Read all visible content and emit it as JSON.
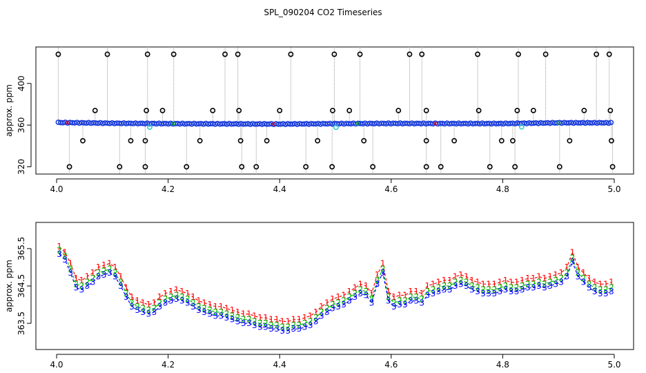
{
  "chart_data": [
    {
      "type": "scatter",
      "title": "SPL_090204  CO2 Timeseries",
      "xlabel": "",
      "ylabel": "approx. ppm",
      "xlim": [
        4.0,
        5.0
      ],
      "ylim": [
        313,
        435
      ],
      "x_ticks": [
        "4.0",
        "4.2",
        "4.4",
        "4.6",
        "4.8",
        "5.0"
      ],
      "y_ticks": [
        "320",
        "360",
        "400"
      ],
      "baseline": {
        "x": [
          4.0,
          4.1,
          4.2,
          4.3,
          4.4,
          4.5,
          4.6,
          4.7,
          4.8,
          4.9,
          4.99
        ],
        "y": [
          362.5,
          361.8,
          361.4,
          361.2,
          361.0,
          361.4,
          361.6,
          361.5,
          361.5,
          362.2,
          362.2
        ]
      },
      "spikes_high": [
        4.003,
        4.091,
        4.163,
        4.21,
        4.302,
        4.325,
        4.42,
        4.498,
        4.544,
        4.633,
        4.655,
        4.755,
        4.828,
        4.877,
        4.968,
        4.991
      ],
      "spikes_mid": [
        4.069,
        4.161,
        4.19,
        4.28,
        4.327,
        4.4,
        4.495,
        4.525,
        4.613,
        4.663,
        4.757,
        4.826,
        4.855,
        4.946,
        4.993
      ],
      "spikes_low": [
        4.047,
        4.133,
        4.159,
        4.257,
        4.33,
        4.377,
        4.468,
        4.551,
        4.663,
        4.713,
        4.798,
        4.818,
        4.92,
        4.995
      ],
      "spikes_bottom": [
        4.023,
        4.113,
        4.159,
        4.233,
        4.332,
        4.358,
        4.447,
        4.494,
        4.567,
        4.663,
        4.689,
        4.777,
        4.822,
        4.902,
        4.997
      ],
      "cyan_points": [
        4.167,
        4.501,
        4.834
      ]
    },
    {
      "type": "line",
      "title": "",
      "xlabel": "",
      "ylabel": "approx. ppm",
      "xlim": [
        4.0,
        5.0
      ],
      "ylim": [
        362.8,
        366.2
      ],
      "x_ticks": [
        "4.0",
        "4.2",
        "4.4",
        "4.6",
        "4.8",
        "5.0"
      ],
      "y_ticks": [
        "363.5",
        "364.5",
        "365.5"
      ],
      "series": [
        {
          "name": "1",
          "label": "1",
          "color": "#ff0000",
          "x": [
            4.005,
            4.015,
            4.025,
            4.035,
            4.045,
            4.055,
            4.065,
            4.075,
            4.085,
            4.095,
            4.105,
            4.115,
            4.125,
            4.135,
            4.145,
            4.155,
            4.165,
            4.175,
            4.185,
            4.195,
            4.205,
            4.215,
            4.225,
            4.235,
            4.245,
            4.255,
            4.265,
            4.275,
            4.285,
            4.295,
            4.305,
            4.315,
            4.325,
            4.335,
            4.345,
            4.355,
            4.365,
            4.375,
            4.385,
            4.395,
            4.405,
            4.415,
            4.425,
            4.435,
            4.445,
            4.455,
            4.465,
            4.475,
            4.485,
            4.495,
            4.505,
            4.515,
            4.525,
            4.535,
            4.545,
            4.555,
            4.565,
            4.575,
            4.585,
            4.595,
            4.605,
            4.615,
            4.625,
            4.635,
            4.645,
            4.655,
            4.665,
            4.675,
            4.685,
            4.695,
            4.705,
            4.715,
            4.725,
            4.735,
            4.745,
            4.755,
            4.765,
            4.775,
            4.785,
            4.795,
            4.805,
            4.815,
            4.825,
            4.835,
            4.845,
            4.855,
            4.865,
            4.875,
            4.885,
            4.895,
            4.905,
            4.915,
            4.925,
            4.935,
            4.945,
            4.955,
            4.965,
            4.975,
            4.985,
            4.995
          ],
          "y": [
            365.55,
            365.4,
            365.1,
            364.7,
            364.65,
            364.75,
            364.85,
            365.0,
            365.05,
            365.1,
            365.0,
            364.75,
            364.45,
            364.2,
            364.1,
            364.05,
            364.0,
            364.05,
            364.2,
            364.3,
            364.35,
            364.4,
            364.35,
            364.3,
            364.2,
            364.1,
            364.05,
            364.0,
            363.95,
            363.95,
            363.9,
            363.85,
            363.8,
            363.75,
            363.75,
            363.7,
            363.65,
            363.65,
            363.6,
            363.6,
            363.55,
            363.55,
            363.6,
            363.6,
            363.65,
            363.7,
            363.8,
            363.95,
            364.05,
            364.15,
            364.2,
            364.25,
            364.35,
            364.45,
            364.55,
            364.5,
            364.3,
            364.8,
            365.1,
            364.35,
            364.2,
            364.25,
            364.25,
            364.35,
            364.35,
            364.3,
            364.5,
            364.55,
            364.6,
            364.65,
            364.65,
            364.75,
            364.8,
            364.75,
            364.65,
            364.6,
            364.55,
            364.55,
            364.55,
            364.6,
            364.65,
            364.6,
            364.6,
            364.65,
            364.7,
            364.7,
            364.75,
            364.7,
            364.75,
            364.8,
            364.85,
            365.0,
            365.4,
            365.0,
            364.85,
            364.7,
            364.6,
            364.55,
            364.55,
            364.6
          ]
        },
        {
          "name": "2",
          "label": "2",
          "color": "#00bb00",
          "x": [
            4.005,
            4.015,
            4.025,
            4.035,
            4.045,
            4.055,
            4.065,
            4.075,
            4.085,
            4.095,
            4.105,
            4.115,
            4.125,
            4.135,
            4.145,
            4.155,
            4.165,
            4.175,
            4.185,
            4.195,
            4.205,
            4.215,
            4.225,
            4.235,
            4.245,
            4.255,
            4.265,
            4.275,
            4.285,
            4.295,
            4.305,
            4.315,
            4.325,
            4.335,
            4.345,
            4.355,
            4.365,
            4.375,
            4.385,
            4.395,
            4.405,
            4.415,
            4.425,
            4.435,
            4.445,
            4.455,
            4.465,
            4.475,
            4.485,
            4.495,
            4.505,
            4.515,
            4.525,
            4.535,
            4.545,
            4.555,
            4.565,
            4.575,
            4.585,
            4.595,
            4.605,
            4.615,
            4.625,
            4.635,
            4.645,
            4.655,
            4.665,
            4.675,
            4.685,
            4.695,
            4.705,
            4.715,
            4.725,
            4.735,
            4.745,
            4.755,
            4.765,
            4.775,
            4.785,
            4.795,
            4.805,
            4.815,
            4.825,
            4.835,
            4.845,
            4.855,
            4.865,
            4.875,
            4.885,
            4.895,
            4.905,
            4.915,
            4.925,
            4.935,
            4.945,
            4.955,
            4.965,
            4.975,
            4.985,
            4.995
          ],
          "y": [
            365.45,
            365.3,
            364.95,
            364.55,
            364.5,
            364.6,
            364.7,
            364.85,
            364.9,
            364.95,
            364.85,
            364.6,
            364.3,
            364.05,
            363.95,
            363.9,
            363.85,
            363.9,
            364.05,
            364.15,
            364.2,
            364.25,
            364.2,
            364.15,
            364.05,
            363.95,
            363.9,
            363.85,
            363.8,
            363.8,
            363.75,
            363.7,
            363.65,
            363.6,
            363.6,
            363.55,
            363.5,
            363.5,
            363.45,
            363.45,
            363.4,
            363.4,
            363.45,
            363.45,
            363.5,
            363.55,
            363.65,
            363.8,
            363.9,
            364.0,
            364.05,
            364.1,
            364.2,
            364.3,
            364.4,
            364.35,
            364.15,
            364.65,
            364.95,
            364.2,
            364.05,
            364.1,
            364.1,
            364.2,
            364.2,
            364.15,
            364.35,
            364.4,
            364.45,
            364.5,
            364.5,
            364.6,
            364.65,
            364.6,
            364.5,
            364.45,
            364.4,
            364.4,
            364.4,
            364.45,
            364.5,
            364.45,
            364.45,
            364.5,
            364.55,
            364.55,
            364.6,
            364.55,
            364.6,
            364.65,
            364.7,
            364.85,
            365.25,
            364.85,
            364.7,
            364.55,
            364.45,
            364.4,
            364.4,
            364.45
          ]
        },
        {
          "name": "3",
          "label": "3",
          "color": "#0000ff",
          "x": [
            4.005,
            4.015,
            4.025,
            4.035,
            4.045,
            4.055,
            4.065,
            4.075,
            4.085,
            4.095,
            4.105,
            4.115,
            4.125,
            4.135,
            4.145,
            4.155,
            4.165,
            4.175,
            4.185,
            4.195,
            4.205,
            4.215,
            4.225,
            4.235,
            4.245,
            4.255,
            4.265,
            4.275,
            4.285,
            4.295,
            4.305,
            4.315,
            4.325,
            4.335,
            4.345,
            4.355,
            4.365,
            4.375,
            4.385,
            4.395,
            4.405,
            4.415,
            4.425,
            4.435,
            4.445,
            4.455,
            4.465,
            4.475,
            4.485,
            4.495,
            4.505,
            4.515,
            4.525,
            4.535,
            4.545,
            4.555,
            4.565,
            4.575,
            4.585,
            4.595,
            4.605,
            4.615,
            4.625,
            4.635,
            4.645,
            4.655,
            4.665,
            4.675,
            4.685,
            4.695,
            4.705,
            4.715,
            4.725,
            4.735,
            4.745,
            4.755,
            4.765,
            4.775,
            4.785,
            4.795,
            4.805,
            4.815,
            4.825,
            4.835,
            4.845,
            4.855,
            4.865,
            4.875,
            4.885,
            4.895,
            4.905,
            4.915,
            4.925,
            4.935,
            4.945,
            4.955,
            4.965,
            4.975,
            4.985,
            4.995
          ],
          "y": [
            365.35,
            365.2,
            364.85,
            364.45,
            364.4,
            364.5,
            364.6,
            364.75,
            364.8,
            364.85,
            364.75,
            364.5,
            364.2,
            363.95,
            363.85,
            363.8,
            363.75,
            363.8,
            363.95,
            364.05,
            364.1,
            364.15,
            364.1,
            364.05,
            363.95,
            363.85,
            363.8,
            363.75,
            363.7,
            363.7,
            363.65,
            363.6,
            363.55,
            363.5,
            363.5,
            363.45,
            363.4,
            363.4,
            363.35,
            363.35,
            363.3,
            363.3,
            363.35,
            363.35,
            363.4,
            363.45,
            363.55,
            363.7,
            363.8,
            363.9,
            363.95,
            364.0,
            364.1,
            364.2,
            364.3,
            364.25,
            364.05,
            364.55,
            364.85,
            364.1,
            363.95,
            364.0,
            364.0,
            364.1,
            364.1,
            364.05,
            364.25,
            364.3,
            364.35,
            364.4,
            364.4,
            364.5,
            364.55,
            364.5,
            364.4,
            364.35,
            364.3,
            364.3,
            364.3,
            364.35,
            364.4,
            364.35,
            364.35,
            364.4,
            364.45,
            364.45,
            364.5,
            364.45,
            364.5,
            364.55,
            364.6,
            364.75,
            365.15,
            364.75,
            364.6,
            364.45,
            364.35,
            364.3,
            364.3,
            364.35
          ]
        }
      ]
    }
  ]
}
